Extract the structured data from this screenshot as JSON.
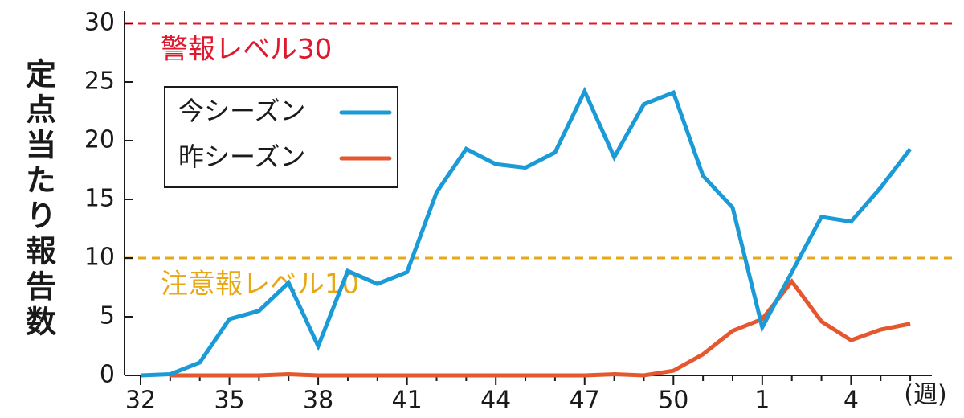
{
  "chart_data": {
    "type": "line",
    "y_label": "定点当たり報告数",
    "x_unit": "(週)",
    "categories": [
      "32",
      null,
      null,
      "35",
      null,
      null,
      "38",
      null,
      null,
      "41",
      null,
      null,
      "44",
      null,
      null,
      "47",
      null,
      null,
      "50",
      null,
      null,
      "1",
      null,
      null,
      "4",
      null,
      null
    ],
    "series": [
      {
        "name": "今シーズン",
        "color": "#1a9ad6",
        "values": [
          0,
          0.1,
          1.1,
          4.8,
          5.5,
          7.9,
          2.5,
          8.9,
          7.8,
          8.8,
          15.6,
          19.3,
          18,
          17.7,
          19,
          24.2,
          18.6,
          23.1,
          24.1,
          17,
          14.3,
          4.1,
          8.8,
          13.5,
          13.1,
          16,
          19.3
        ]
      },
      {
        "name": "昨シーズン",
        "color": "#e5572f",
        "values": [
          null,
          0,
          0,
          0,
          0,
          0.1,
          0,
          0,
          0,
          0,
          0,
          0,
          0,
          0,
          0,
          0,
          0.1,
          0,
          0.4,
          1.8,
          3.8,
          4.8,
          8,
          4.6,
          3,
          3.9,
          4.4
        ]
      }
    ],
    "reference_lines": [
      {
        "value": 30,
        "label": "警報レベル30",
        "color": "#e0182d"
      },
      {
        "value": 10,
        "label": "注意報レベル10",
        "color": "#e8a815"
      }
    ],
    "ylim": [
      0,
      30
    ],
    "yticks": [
      0,
      5,
      10,
      15,
      20,
      25,
      30
    ]
  }
}
